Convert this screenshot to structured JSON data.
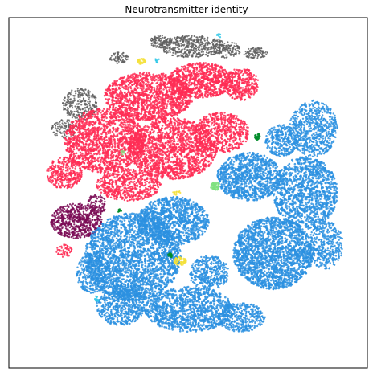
{
  "chart_data": {
    "type": "scatter",
    "title": "Neurotransmitter identity",
    "xlabel": "",
    "ylabel": "",
    "axes_ticks": false,
    "grid": false,
    "legend": "none",
    "description_kind": "t-SNE embedding of cells colored by neurotransmitter identity; no axis values printed",
    "series": [
      {
        "color": "#ff2d55"
      },
      {
        "color": "#2b90e0"
      },
      {
        "color": "#5f5f5f"
      },
      {
        "color": "#7a0a55"
      },
      {
        "color": "#f5e03a"
      },
      {
        "color": "#7fe07f"
      },
      {
        "color": "#008c2a"
      },
      {
        "color": "#30c8e8"
      }
    ]
  }
}
